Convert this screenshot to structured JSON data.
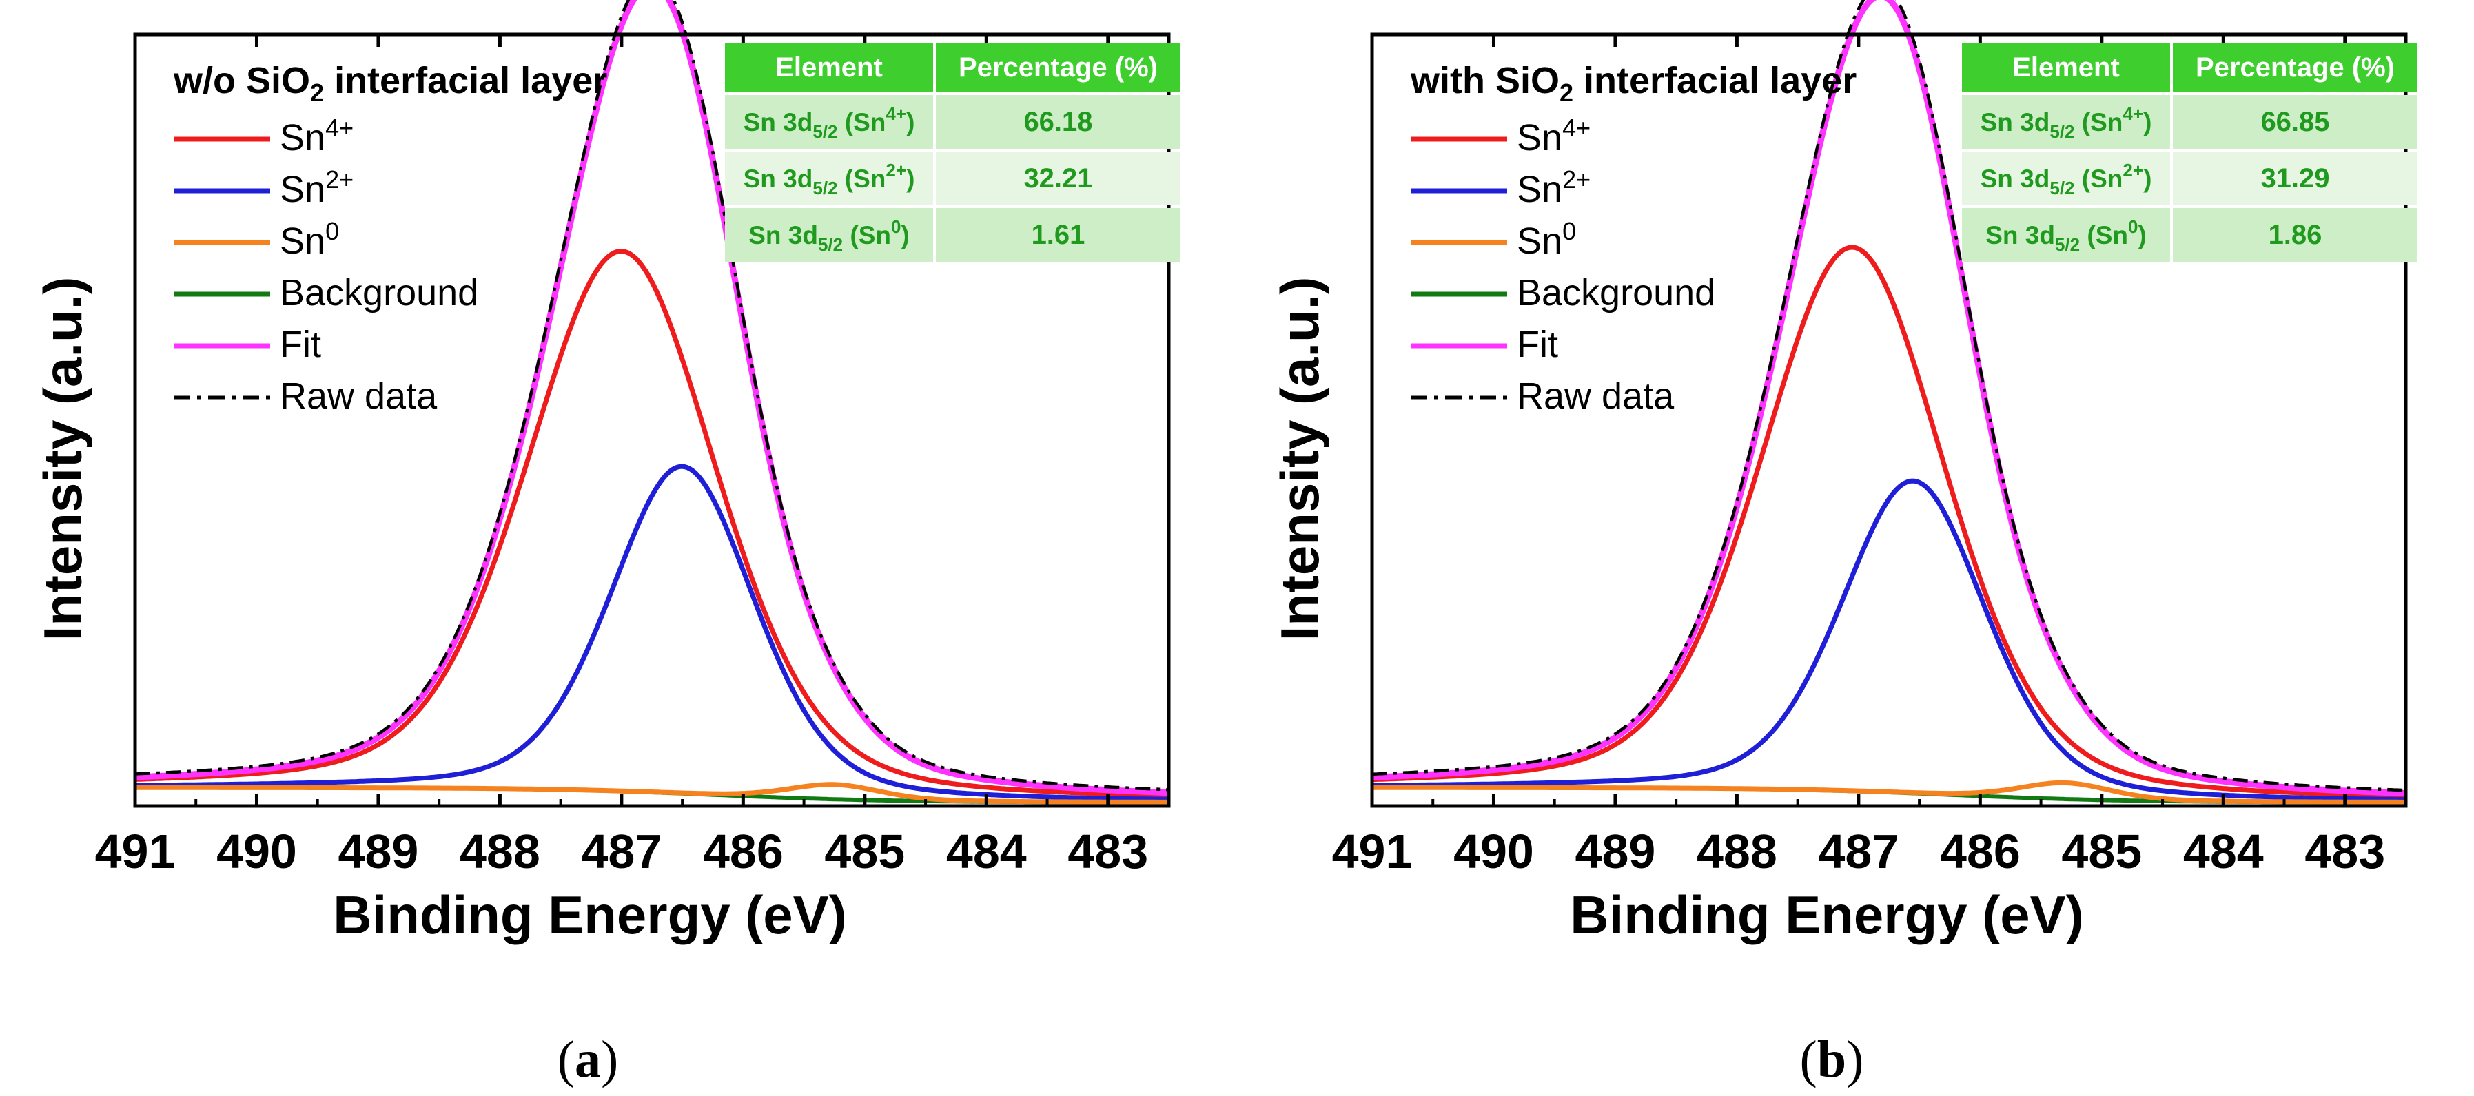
{
  "chart_data": [
    {
      "type": "line",
      "panel_label": "a",
      "title_main": "w/o SiO",
      "title_sub": "2",
      "title_rest": " interfacial layer",
      "xlabel": "Binding Energy (eV)",
      "ylabel": "Intensity (a.u.)",
      "xlim": [
        491,
        482.5
      ],
      "x_ticks": [
        491,
        490,
        489,
        488,
        487,
        486,
        485,
        484,
        483
      ],
      "ylim": [
        0,
        1.05
      ],
      "legend": [
        {
          "key": "sn4",
          "label": "Sn",
          "sup": "4+",
          "color": "#ee1c1c",
          "style": "solid"
        },
        {
          "key": "sn2",
          "label": "Sn",
          "sup": "2+",
          "color": "#1f1fd8",
          "style": "solid"
        },
        {
          "key": "sn0",
          "label": "Sn",
          "sup": "0",
          "color": "#f5821f",
          "style": "solid"
        },
        {
          "key": "bg",
          "label": "Background",
          "sup": "",
          "color": "#127a12",
          "style": "solid"
        },
        {
          "key": "fit",
          "label": "Fit",
          "sup": "",
          "color": "#ff33ff",
          "style": "solid"
        },
        {
          "key": "raw",
          "label": "Raw data",
          "sup": "",
          "color": "#000000",
          "style": "dashdot"
        }
      ],
      "peaks": [
        {
          "key": "sn4",
          "center": 487.0,
          "height": 0.735,
          "fwhm": 1.85
        },
        {
          "key": "sn2",
          "center": 486.5,
          "height": 0.445,
          "fwhm": 1.4
        },
        {
          "key": "sn0",
          "center": 485.25,
          "height": 0.02,
          "fwhm": 0.9
        }
      ],
      "background": {
        "start": 0.025,
        "end": 0.005,
        "step_center": 486.2
      },
      "table": {
        "headers": [
          "Element",
          "Percentage (%)"
        ],
        "rows": [
          {
            "pre": "Sn 3d",
            "sub": "5/2",
            "mid": " (Sn",
            "sup": "4+",
            "post": ")",
            "value": "66.18"
          },
          {
            "pre": "Sn 3d",
            "sub": "5/2",
            "mid": " (Sn",
            "sup": "2+",
            "post": ")",
            "value": "32.21"
          },
          {
            "pre": "Sn 3d",
            "sub": "5/2",
            "mid": " (Sn",
            "sup": "0",
            "post": ")",
            "value": "1.61"
          }
        ]
      }
    },
    {
      "type": "line",
      "panel_label": "b",
      "title_main": "with SiO",
      "title_sub": "2",
      "title_rest": " interfacial layer",
      "xlabel": "Binding Energy (eV)",
      "ylabel": "Intensity (a.u.)",
      "xlim": [
        491,
        482.5
      ],
      "x_ticks": [
        491,
        490,
        489,
        488,
        487,
        486,
        485,
        484,
        483
      ],
      "ylim": [
        0,
        1.05
      ],
      "legend": [
        {
          "key": "sn4",
          "label": "Sn",
          "sup": "4+",
          "color": "#ee1c1c",
          "style": "solid"
        },
        {
          "key": "sn2",
          "label": "Sn",
          "sup": "2+",
          "color": "#1f1fd8",
          "style": "solid"
        },
        {
          "key": "sn0",
          "label": "Sn",
          "sup": "0",
          "color": "#f5821f",
          "style": "solid"
        },
        {
          "key": "bg",
          "label": "Background",
          "sup": "",
          "color": "#127a12",
          "style": "solid"
        },
        {
          "key": "fit",
          "label": "Fit",
          "sup": "",
          "color": "#ff33ff",
          "style": "solid"
        },
        {
          "key": "raw",
          "label": "Raw data",
          "sup": "",
          "color": "#000000",
          "style": "dashdot"
        }
      ],
      "peaks": [
        {
          "key": "sn4",
          "center": 487.05,
          "height": 0.74,
          "fwhm": 1.8
        },
        {
          "key": "sn2",
          "center": 486.55,
          "height": 0.425,
          "fwhm": 1.4
        },
        {
          "key": "sn0",
          "center": 485.3,
          "height": 0.022,
          "fwhm": 0.9
        }
      ],
      "background": {
        "start": 0.025,
        "end": 0.005,
        "step_center": 486.2
      },
      "table": {
        "headers": [
          "Element",
          "Percentage (%)"
        ],
        "rows": [
          {
            "pre": "Sn 3d",
            "sub": "5/2",
            "mid": " (Sn",
            "sup": "4+",
            "post": ")",
            "value": "66.85"
          },
          {
            "pre": "Sn 3d",
            "sub": "5/2",
            "mid": " (Sn",
            "sup": "2+",
            "post": ")",
            "value": "31.29"
          },
          {
            "pre": "Sn 3d",
            "sub": "5/2",
            "mid": " (Sn",
            "sup": "0",
            "post": ")",
            "value": "1.86"
          }
        ]
      }
    }
  ],
  "captions": {
    "a": "a",
    "b": "b"
  }
}
